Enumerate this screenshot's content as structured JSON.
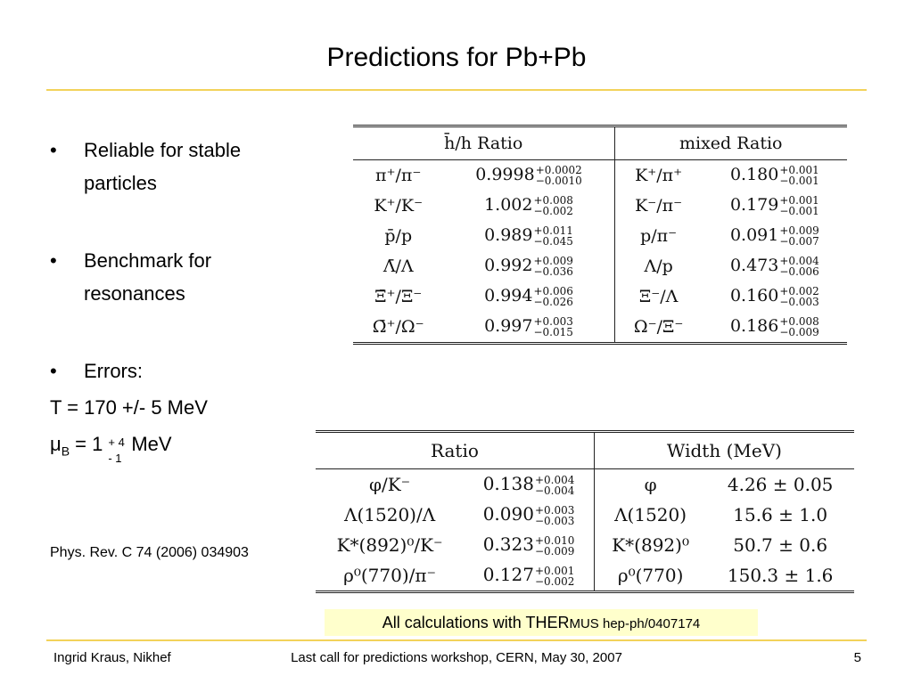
{
  "title": "Predictions for Pb+Pb",
  "bullets": [
    "Reliable for stable particles",
    "Benchmark for resonances",
    "Errors:"
  ],
  "temperature": "T = 170 +/- 5 MeV",
  "mu": {
    "symbol": "μ",
    "sub": "B",
    "value": "= 1",
    "plus": "+ 4",
    "minus": "-  1",
    "unit": "MeV"
  },
  "reference": "Phys. Rev. C 74 (2006) 034903",
  "table1": {
    "headers": [
      "h̄/h Ratio",
      "mixed Ratio"
    ],
    "rows": [
      {
        "ratio": "π⁺/π⁻",
        "val": "0.9998",
        "plus": "+0.0002",
        "minus": "−0.0010",
        "mratio": "K⁺/π⁺",
        "mval": "0.180",
        "mplus": "+0.001",
        "mminus": "−0.001"
      },
      {
        "ratio": "K⁺/K⁻",
        "val": "1.002",
        "plus": "+0.008",
        "minus": "−0.002",
        "mratio": "K⁻/π⁻",
        "mval": "0.179",
        "mplus": "+0.001",
        "mminus": "−0.001"
      },
      {
        "ratio": "p̄/p",
        "val": "0.989",
        "plus": "+0.011",
        "minus": "−0.045",
        "mratio": "p/π⁻",
        "mval": "0.091",
        "mplus": "+0.009",
        "mminus": "−0.007"
      },
      {
        "ratio": "Λ̄/Λ",
        "val": "0.992",
        "plus": "+0.009",
        "minus": "−0.036",
        "mratio": "Λ/p",
        "mval": "0.473",
        "mplus": "+0.004",
        "mminus": "−0.006"
      },
      {
        "ratio": "Ξ̄⁺/Ξ⁻",
        "val": "0.994",
        "plus": "+0.006",
        "minus": "−0.026",
        "mratio": "Ξ⁻/Λ",
        "mval": "0.160",
        "mplus": "+0.002",
        "mminus": "−0.003"
      },
      {
        "ratio": "Ω̄⁺/Ω⁻",
        "val": "0.997",
        "plus": "+0.003",
        "minus": "−0.015",
        "mratio": "Ω⁻/Ξ⁻",
        "mval": "0.186",
        "mplus": "+0.008",
        "mminus": "−0.009"
      }
    ]
  },
  "table2": {
    "headers": [
      "Ratio",
      "Width (MeV)"
    ],
    "rows": [
      {
        "ratio": "φ/K⁻",
        "val": "0.138",
        "plus": "+0.004",
        "minus": "−0.004",
        "particle": "φ",
        "width": "4.26 ± 0.05"
      },
      {
        "ratio": "Λ(1520)/Λ",
        "val": "0.090",
        "plus": "+0.003",
        "minus": "−0.003",
        "particle": "Λ(1520)",
        "width": "15.6 ± 1.0"
      },
      {
        "ratio": "K*(892)⁰/K⁻",
        "val": "0.323",
        "plus": "+0.010",
        "minus": "−0.009",
        "particle": "K*(892)⁰",
        "width": "50.7 ± 0.6"
      },
      {
        "ratio": "ρ⁰(770)/π⁻",
        "val": "0.127",
        "plus": "+0.001",
        "minus": "−0.002",
        "particle": "ρ⁰(770)",
        "width": "150.3 ± 1.6"
      }
    ]
  },
  "note": {
    "text": "All calculations with THER",
    "small": "MUS hep-ph/0407174",
    "background": "#ffffcc"
  },
  "footer": {
    "left": "Ingrid Kraus, Nikhef",
    "center": "Last call for predictions workshop, CERN, May 30, 2007",
    "right": "5"
  },
  "colors": {
    "rule": "#f2d25a"
  }
}
